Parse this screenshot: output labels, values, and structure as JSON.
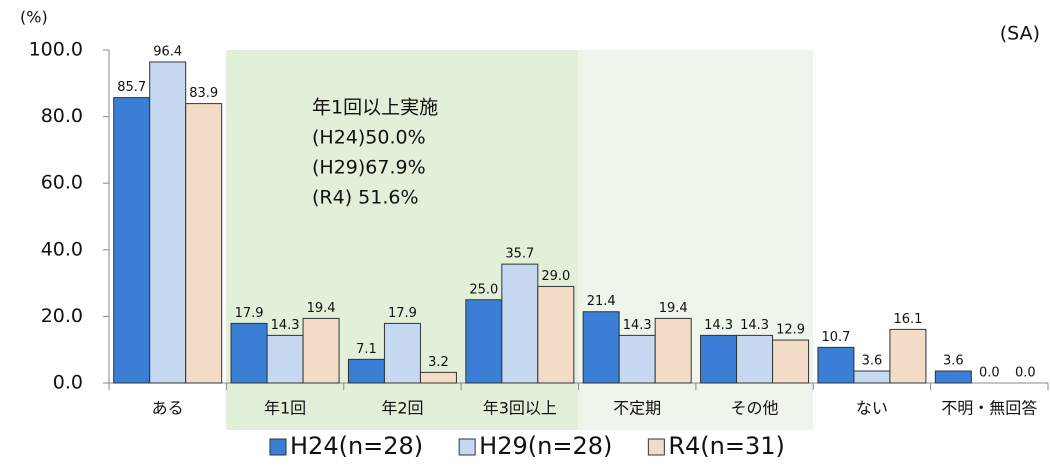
{
  "chart_data": {
    "type": "bar",
    "y_unit": "(%)",
    "note": "(SA)",
    "annotation": [
      "年1回以上実施",
      "(H24)50.0%",
      "(H29)67.9%",
      "(R4) 51.6%"
    ],
    "categories": [
      "ある",
      "年1回",
      "年2回",
      "年3回以上",
      "不定期",
      "その他",
      "ない",
      "不明・無回答"
    ],
    "series": [
      {
        "name": "H24(n=28)",
        "color": "#3a7fd5",
        "values": [
          85.7,
          17.9,
          7.1,
          25.0,
          21.4,
          14.3,
          10.7,
          3.6
        ],
        "value_labels": [
          "85.7",
          "17.9",
          "7.1",
          "25.0",
          "21.4",
          "14.3",
          "10.7",
          "3.6"
        ]
      },
      {
        "name": "H29(n=28)",
        "color": "#c6d9f1",
        "values": [
          96.4,
          14.3,
          17.9,
          35.7,
          14.3,
          14.3,
          3.6,
          0
        ],
        "value_labels": [
          "96.4",
          "14.3",
          "17.9",
          "35.7",
          "14.3",
          "14.3",
          "3.6",
          "0.0"
        ]
      },
      {
        "name": "R4(n=31)",
        "color": "#f2dcc8",
        "values": [
          83.9,
          19.4,
          3.2,
          29.0,
          19.4,
          12.9,
          16.1,
          0
        ],
        "value_labels": [
          "83.9",
          "19.4",
          "3.2",
          "29.0",
          "19.4",
          "12.9",
          "16.1",
          "0.0"
        ]
      }
    ],
    "ylim": [
      0,
      100
    ],
    "yticks": [
      {
        "value": 0,
        "label": "0.0"
      },
      {
        "value": 20,
        "label": "20.0"
      },
      {
        "value": 40,
        "label": "40.0"
      },
      {
        "value": 60,
        "label": "60.0"
      },
      {
        "value": 80,
        "label": "80.0"
      },
      {
        "value": 100,
        "label": "100.0"
      }
    ]
  }
}
